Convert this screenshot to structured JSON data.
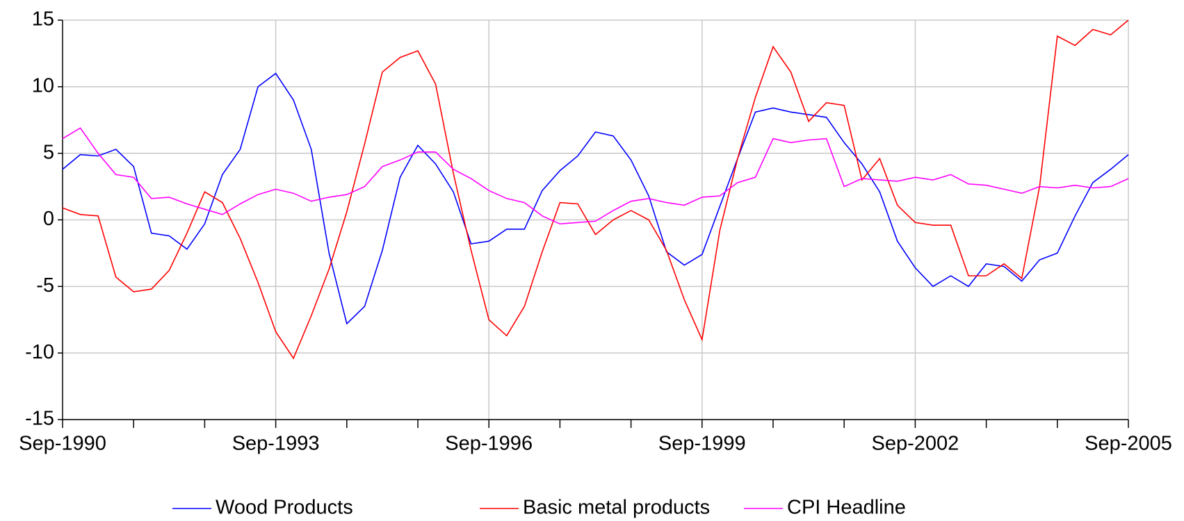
{
  "chart_data": {
    "type": "line",
    "categories": [
      "Sep-1990",
      null,
      null,
      null,
      null,
      null,
      null,
      null,
      null,
      null,
      null,
      null,
      "Sep-1993",
      null,
      null,
      null,
      null,
      null,
      null,
      null,
      null,
      null,
      null,
      null,
      "Sep-1996",
      null,
      null,
      null,
      null,
      null,
      null,
      null,
      null,
      null,
      null,
      null,
      "Sep-1999",
      null,
      null,
      null,
      null,
      null,
      null,
      null,
      null,
      null,
      null,
      null,
      "Sep-2002",
      null,
      null,
      null,
      null,
      null,
      null,
      null,
      null,
      null,
      null,
      null,
      "Sep-2005"
    ],
    "series": [
      {
        "name": "Wood Products",
        "color": "#0000ff",
        "values": [
          3.8,
          4.9,
          4.8,
          5.3,
          4.0,
          -1.0,
          -1.2,
          -2.2,
          -0.3,
          3.4,
          5.3,
          10.0,
          11.0,
          9.0,
          5.3,
          -2.5,
          -7.8,
          -6.5,
          -2.3,
          3.2,
          5.6,
          4.2,
          2.1,
          -1.8,
          -1.6,
          -0.7,
          -0.7,
          2.2,
          3.7,
          4.8,
          6.6,
          6.3,
          4.5,
          1.8,
          -2.4,
          -3.4,
          -2.6,
          1.0,
          4.6,
          8.1,
          8.4,
          8.1,
          7.9,
          7.7,
          5.8,
          4.2,
          2.1,
          -1.6,
          -3.6,
          -5.0,
          -4.2,
          -5.0,
          -3.3,
          -3.5,
          -4.6,
          -3.0,
          -2.5,
          0.3,
          2.8,
          3.8,
          4.9
        ]
      },
      {
        "name": "Basic metal products",
        "color": "#ff0000",
        "values": [
          0.9,
          0.4,
          0.3,
          -4.3,
          -5.4,
          -5.2,
          -3.8,
          -1.0,
          2.1,
          1.3,
          -1.4,
          -4.7,
          -8.4,
          -10.4,
          -7.2,
          -3.7,
          0.6,
          5.7,
          11.1,
          12.2,
          12.7,
          10.2,
          3.5,
          -2.3,
          -7.5,
          -8.7,
          -6.5,
          -2.4,
          1.3,
          1.2,
          -1.1,
          0.0,
          0.7,
          0.0,
          -2.3,
          -6.0,
          -9.0,
          -0.8,
          4.6,
          9.2,
          13.0,
          11.1,
          7.4,
          8.8,
          8.6,
          3.0,
          4.6,
          1.1,
          -0.2,
          -0.4,
          -0.4,
          -4.2,
          -4.2,
          -3.3,
          -4.4,
          2.5,
          13.8,
          13.1,
          14.3,
          13.9,
          15.0
        ]
      },
      {
        "name": "CPI Headline",
        "color": "#ff00ff",
        "values": [
          6.1,
          6.9,
          5.0,
          3.4,
          3.2,
          1.6,
          1.7,
          1.2,
          0.8,
          0.4,
          1.2,
          1.9,
          2.3,
          2.0,
          1.4,
          1.7,
          1.9,
          2.5,
          4.0,
          4.5,
          5.1,
          5.1,
          3.8,
          3.1,
          2.2,
          1.6,
          1.3,
          0.3,
          -0.3,
          -0.2,
          -0.1,
          0.7,
          1.4,
          1.6,
          1.3,
          1.1,
          1.7,
          1.8,
          2.8,
          3.2,
          6.1,
          5.8,
          6.0,
          6.1,
          2.5,
          3.1,
          3.0,
          2.9,
          3.2,
          3.0,
          3.4,
          2.7,
          2.6,
          2.3,
          2.0,
          2.5,
          2.4,
          2.6,
          2.4,
          2.5,
          3.1
        ]
      }
    ],
    "ylim": [
      -15,
      15
    ],
    "yticks": [
      -15,
      -10,
      -5,
      0,
      5,
      10,
      15
    ],
    "grid": true
  }
}
